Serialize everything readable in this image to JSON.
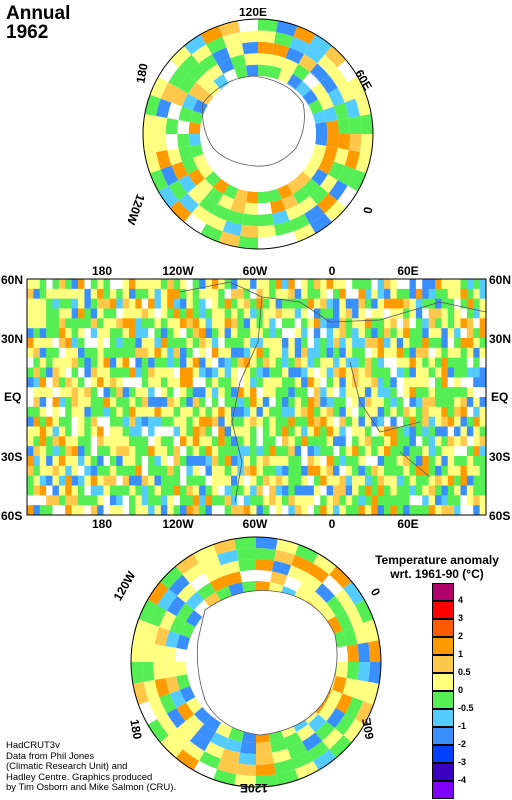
{
  "title": {
    "line1": "Annual",
    "line2": "1962"
  },
  "north_polar": {
    "labels": [
      "120E",
      "60E",
      "0",
      "120W",
      "180"
    ]
  },
  "main_map": {
    "top_lon_labels": [
      "180",
      "120W",
      "60W",
      "0",
      "60E"
    ],
    "bottom_lon_labels": [
      "180",
      "120W",
      "60W",
      "0",
      "60E"
    ],
    "lat_labels": [
      "60N",
      "30N",
      "EQ",
      "30S",
      "60S"
    ]
  },
  "south_polar": {
    "labels": [
      "120W",
      "0",
      "180",
      "60E",
      "120E"
    ]
  },
  "legend": {
    "title_line1": "Temperature anomaly",
    "title_line2": "wrt. 1961-90  (°C)",
    "classes": [
      {
        "color": "#b0006a",
        "label": "4"
      },
      {
        "color": "#ff0000",
        "label": "3"
      },
      {
        "color": "#ff5a00",
        "label": "2"
      },
      {
        "color": "#ff9a00",
        "label": "1"
      },
      {
        "color": "#ffc84a",
        "label": "0.5"
      },
      {
        "color": "#ffff80",
        "label": "0"
      },
      {
        "color": "#55ee55",
        "label": "-0.5"
      },
      {
        "color": "#55ccff",
        "label": "-1"
      },
      {
        "color": "#3a8fff",
        "label": "-2"
      },
      {
        "color": "#0040ff",
        "label": "-3"
      },
      {
        "color": "#3a00c0",
        "label": "-4"
      },
      {
        "color": "#8000ff",
        "label": ""
      }
    ]
  },
  "credits": {
    "line1": "HadCRUT3v",
    "line2": "Data from Phil Jones",
    "line3": "(Climatic Research Unit) and",
    "line4": "Hadley Centre.  Graphics produced",
    "line5": "by Tim Osborn and Mike Salmon (CRU)."
  }
}
